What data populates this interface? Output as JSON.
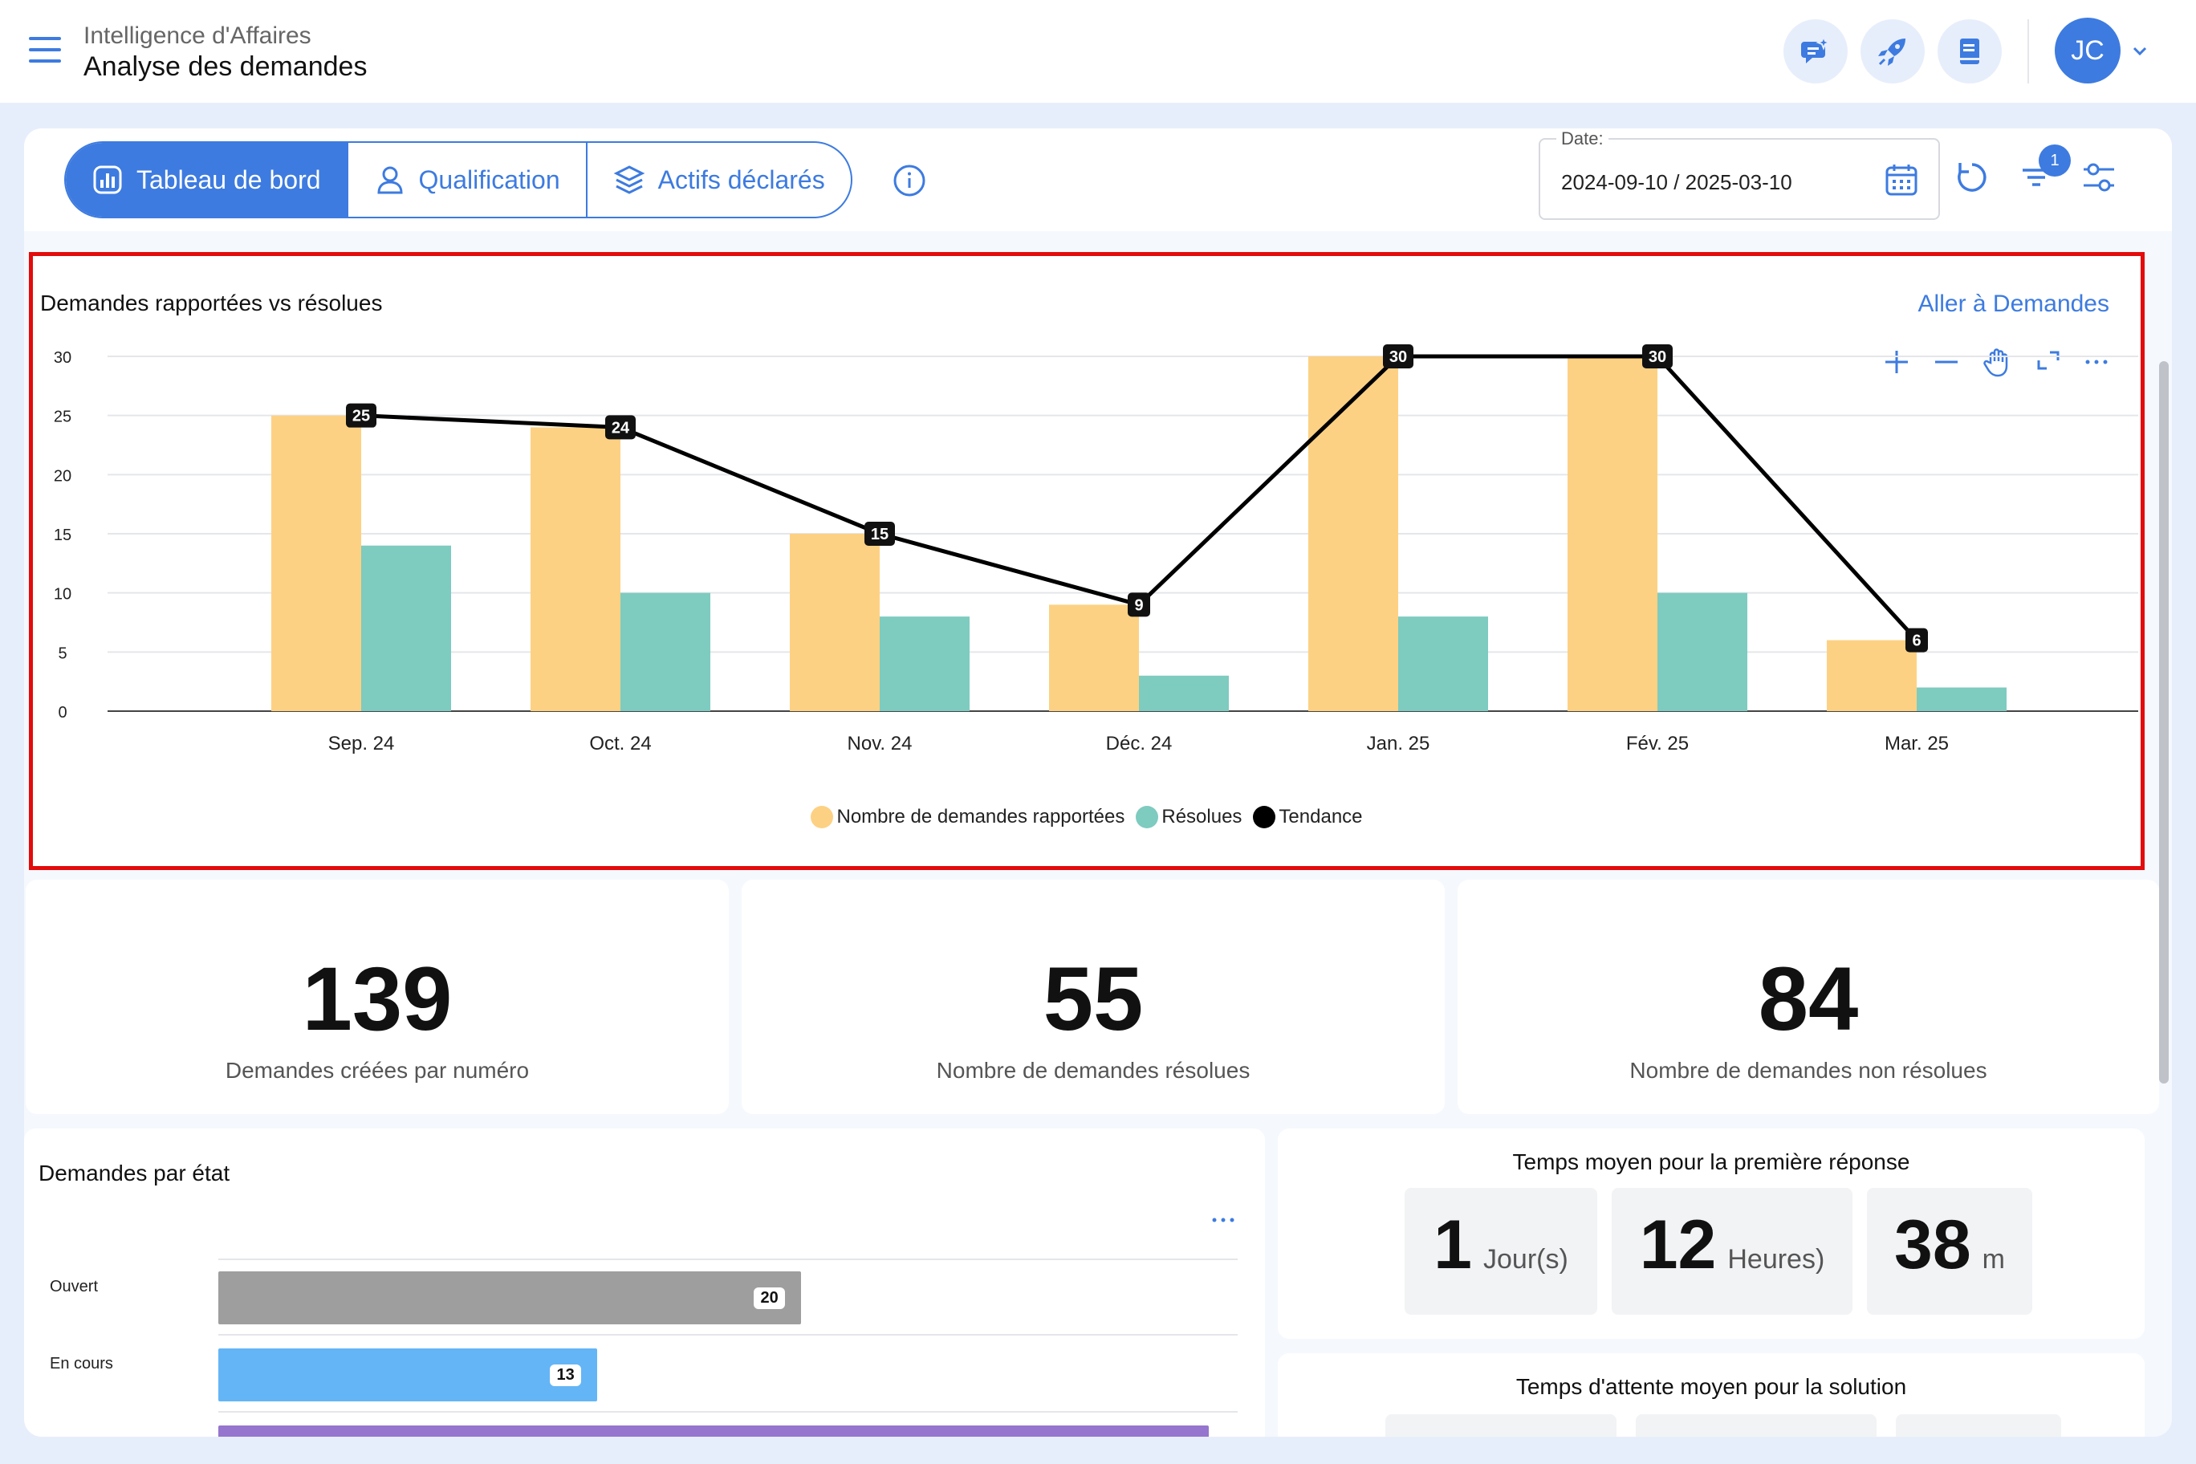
{
  "header": {
    "app_subtitle": "Intelligence d'Affaires",
    "page_title": "Analyse des demandes",
    "avatar_initials": "JC"
  },
  "tabs": [
    {
      "label": "Tableau de bord",
      "active": true
    },
    {
      "label": "Qualification",
      "active": false
    },
    {
      "label": "Actifs déclarés",
      "active": false
    }
  ],
  "date_filter": {
    "label": "Date:",
    "value": "2024-09-10 / 2025-03-10"
  },
  "filter_badge": "1",
  "chart_card": {
    "title": "Demandes rapportées vs résolues",
    "link": "Aller à Demandes"
  },
  "chart_data": {
    "type": "bar",
    "categories": [
      "Sep. 24",
      "Oct. 24",
      "Nov. 24",
      "Déc. 24",
      "Jan. 25",
      "Fév. 25",
      "Mar. 25"
    ],
    "series": [
      {
        "name": "Nombre de demandes rapportées",
        "type": "bar",
        "color": "#fdd183",
        "values": [
          25,
          24,
          15,
          9,
          30,
          30,
          6
        ]
      },
      {
        "name": "Résolues",
        "type": "bar",
        "color": "#7ecbc0",
        "values": [
          14,
          10,
          8,
          3,
          8,
          10,
          2
        ]
      },
      {
        "name": "Tendance",
        "type": "line",
        "color": "#000000",
        "values": [
          25,
          24,
          15,
          9,
          30,
          30,
          6
        ]
      }
    ],
    "yticks": [
      0,
      5,
      10,
      15,
      20,
      25,
      30
    ],
    "ylim": [
      0,
      30
    ],
    "grid": true,
    "legend": "bottom-center"
  },
  "kpis": [
    {
      "value": "139",
      "label": "Demandes créées par numéro"
    },
    {
      "value": "55",
      "label": "Nombre de demandes résolues"
    },
    {
      "value": "84",
      "label": "Nombre de demandes non résolues"
    }
  ],
  "state_card": {
    "title": "Demandes par état",
    "rows": [
      {
        "label": "Ouvert",
        "value": 20,
        "color": "#9e9e9e"
      },
      {
        "label": "En cours",
        "value": 13,
        "color": "#64b5f6"
      },
      {
        "label": "",
        "value": 34,
        "color": "#9575cd"
      }
    ]
  },
  "first_response": {
    "title": "Temps moyen pour la première réponse",
    "parts": [
      {
        "num": "1",
        "unit": "Jour(s)"
      },
      {
        "num": "12",
        "unit": "Heures)"
      },
      {
        "num": "38",
        "unit": "m"
      }
    ]
  },
  "solution_wait": {
    "title": "Temps d'attente moyen pour la solution"
  }
}
